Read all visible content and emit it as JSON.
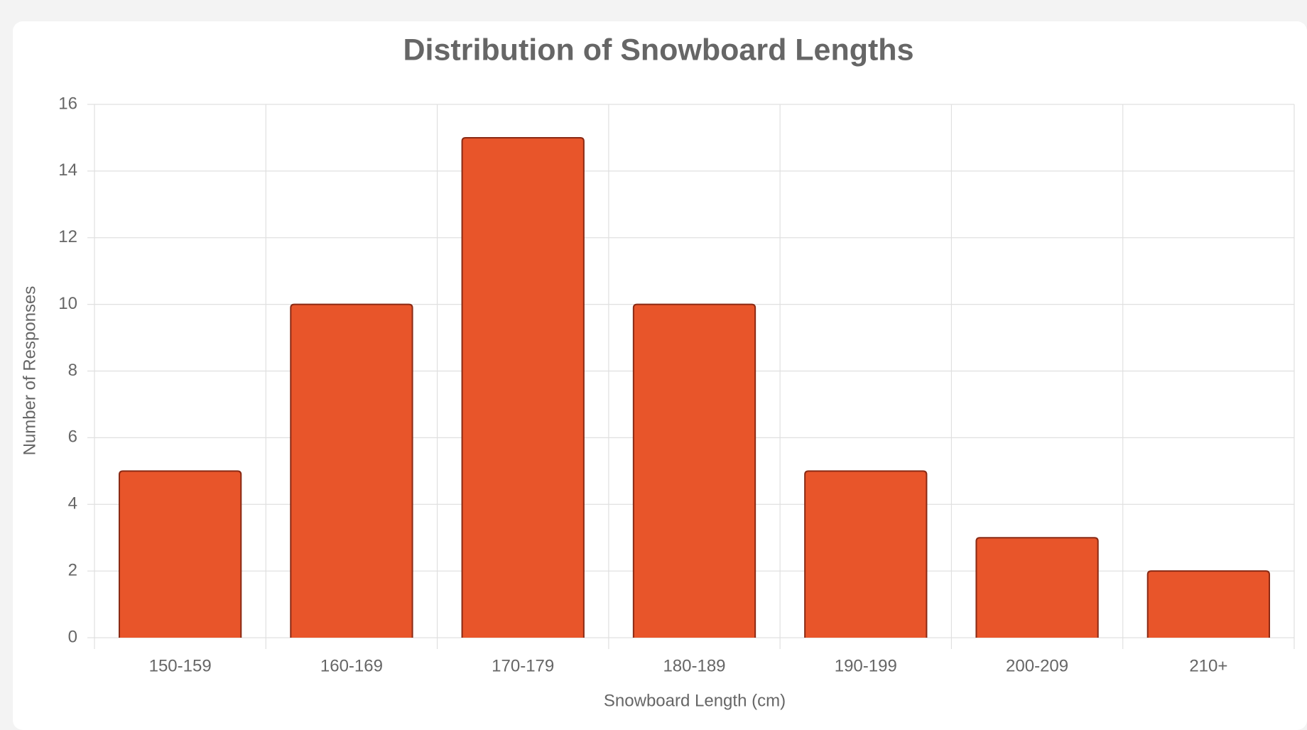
{
  "chart_data": {
    "type": "bar",
    "title": "Distribution of Snowboard Lengths",
    "x_label": "Snowboard Length (cm)",
    "y_label": "Number of Responses",
    "categories": [
      "150-159",
      "160-169",
      "170-179",
      "180-189",
      "190-199",
      "200-209",
      "210+"
    ],
    "values": [
      5,
      10,
      15,
      10,
      5,
      3,
      2
    ],
    "color": "#e8552a",
    "border_color": "#8a2a14",
    "ylim": [
      0,
      16
    ],
    "yticks": [
      0,
      2,
      4,
      6,
      8,
      10,
      12,
      14,
      16
    ],
    "grid": true
  }
}
